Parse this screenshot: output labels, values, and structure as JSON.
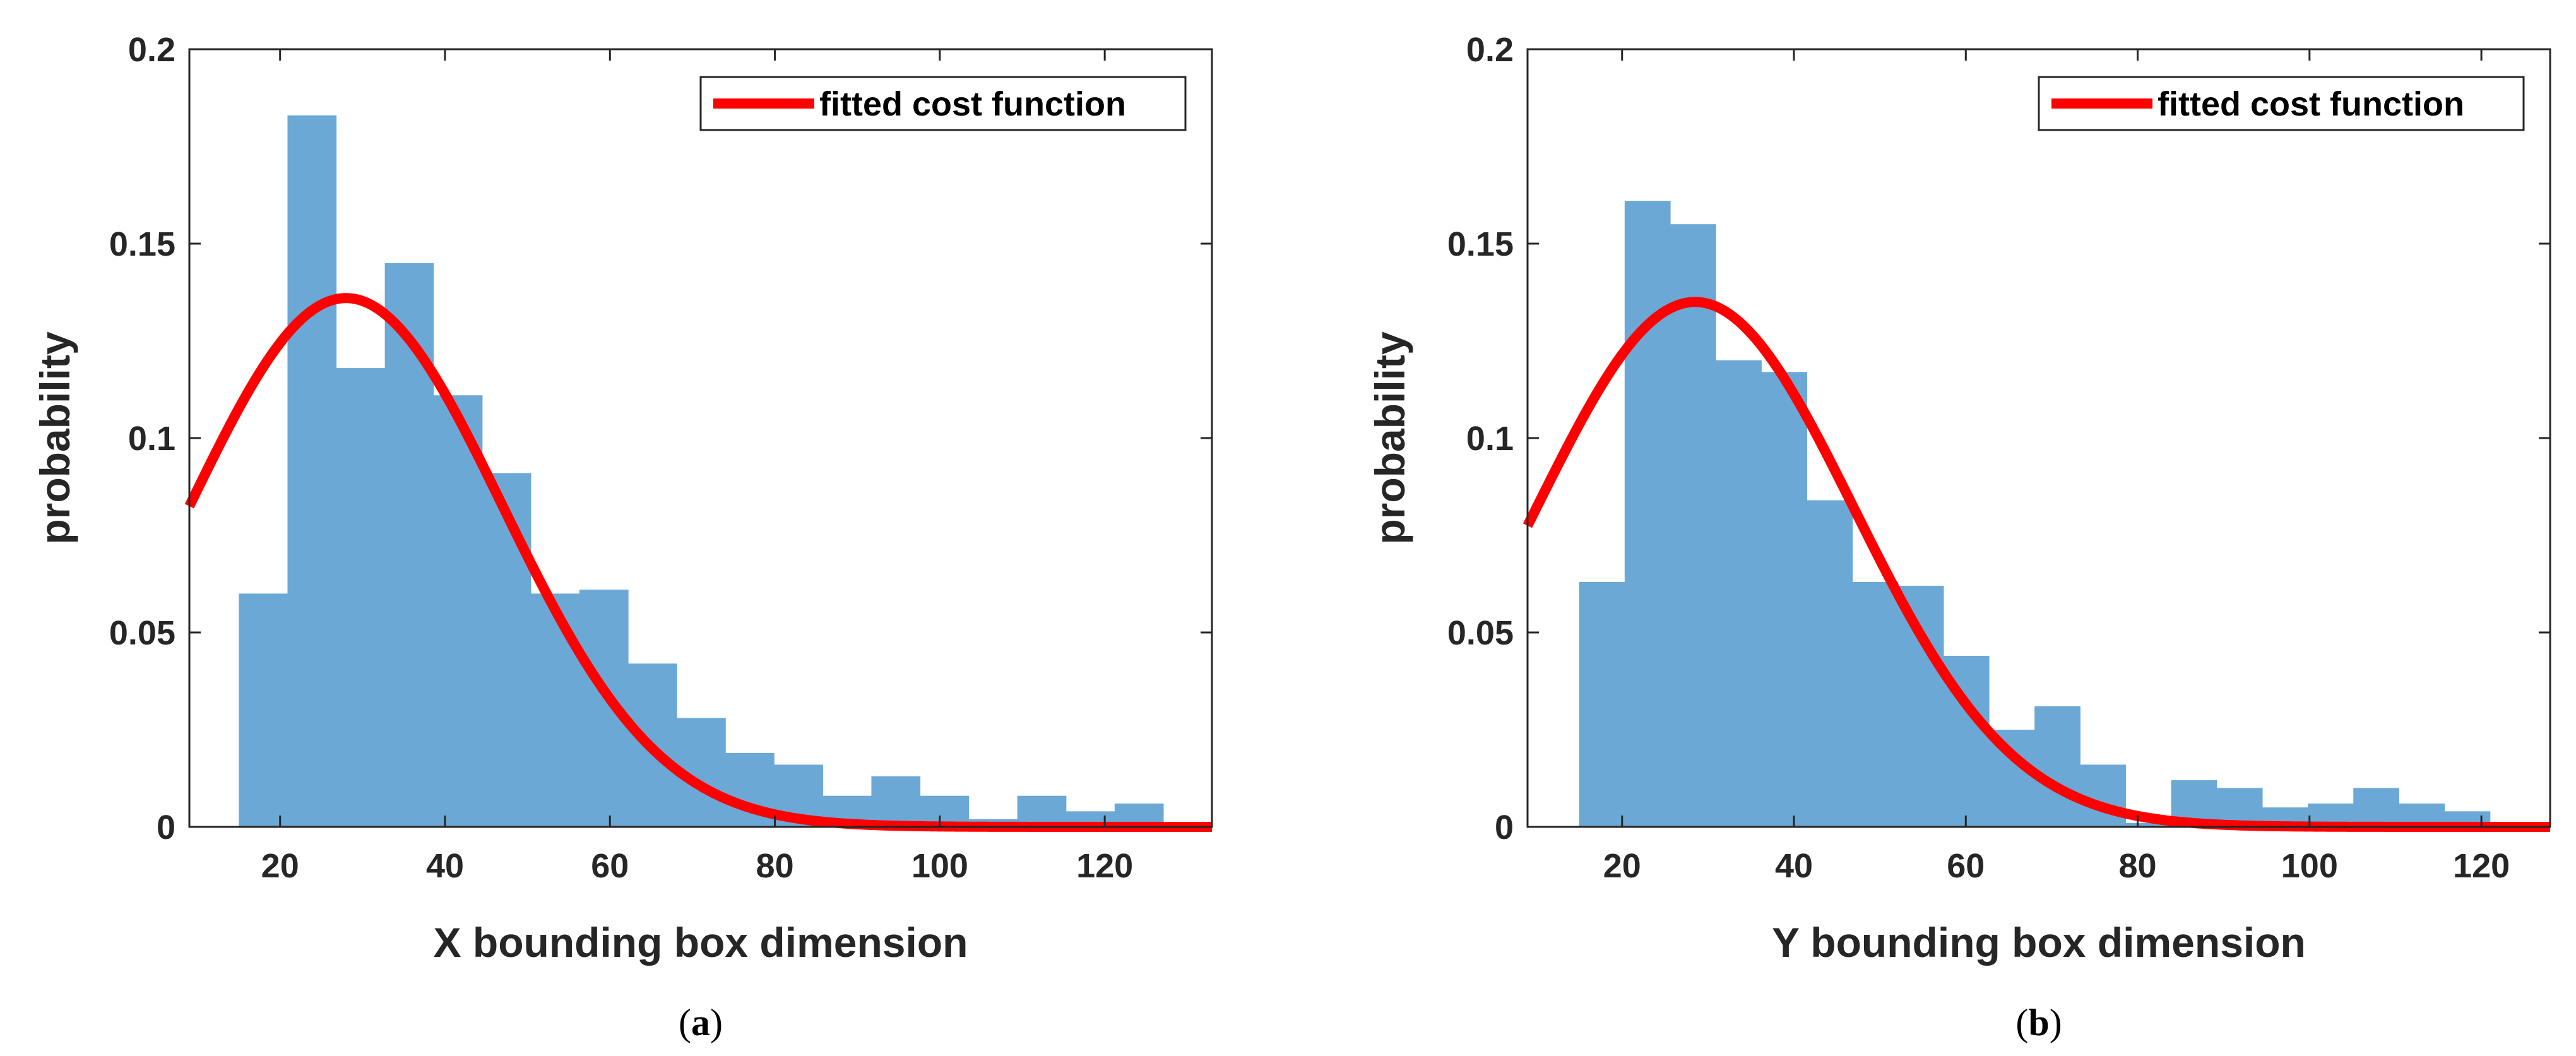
{
  "chart_data": [
    {
      "type": "bar",
      "panel_label": "a",
      "bin_width": 5.9,
      "bin_starts": [
        15,
        20.9,
        26.8,
        32.7,
        38.6,
        44.5,
        50.4,
        56.3,
        62.2,
        68.1,
        74.0,
        79.9,
        85.8,
        91.7,
        97.6,
        103.5,
        109.4,
        115.3,
        121.2
      ],
      "values": [
        0.06,
        0.183,
        0.118,
        0.145,
        0.111,
        0.091,
        0.06,
        0.061,
        0.042,
        0.028,
        0.019,
        0.016,
        0.008,
        0.013,
        0.008,
        0.002,
        0.008,
        0.004,
        0.006
      ],
      "curve": {
        "mu": 28,
        "sigma": 19,
        "peak": 0.136
      },
      "xlabel": "X bounding box dimension",
      "ylabel": "probability",
      "xlim": [
        9,
        133
      ],
      "ylim": [
        0,
        0.2
      ],
      "xticks": [
        20,
        40,
        60,
        80,
        100,
        120
      ],
      "yticks": [
        0,
        0.05,
        0.1,
        0.15,
        0.2
      ],
      "ytick_labels": [
        "0",
        "0.05",
        "0.1",
        "0.15",
        "0.2"
      ],
      "legend": "fitted cost function",
      "bar_color": "#6BA8D6",
      "curve_color": "#FF0000",
      "caption_open": "(",
      "caption_letter": "a",
      "caption_close": ")"
    },
    {
      "type": "bar",
      "panel_label": "b",
      "bin_width": 5.3,
      "bin_starts": [
        15,
        20.3,
        25.6,
        30.9,
        36.2,
        41.5,
        46.8,
        52.1,
        57.4,
        62.7,
        68.0,
        73.3,
        78.6,
        83.9,
        89.2,
        94.5,
        99.8,
        105.1,
        110.4,
        115.7
      ],
      "values": [
        0.063,
        0.161,
        0.155,
        0.12,
        0.117,
        0.084,
        0.063,
        0.062,
        0.044,
        0.025,
        0.031,
        0.016,
        0.001,
        0.012,
        0.01,
        0.005,
        0.006,
        0.01,
        0.006,
        0.004
      ],
      "curve": {
        "mu": 28.5,
        "sigma": 18.5,
        "peak": 0.135
      },
      "xlabel": "Y bounding box dimension",
      "ylabel": "probability",
      "xlim": [
        9,
        128
      ],
      "ylim": [
        0,
        0.2
      ],
      "xticks": [
        20,
        40,
        60,
        80,
        100,
        120
      ],
      "yticks": [
        0,
        0.05,
        0.1,
        0.15,
        0.2
      ],
      "ytick_labels": [
        "0",
        "0.05",
        "0.1",
        "0.15",
        "0.2"
      ],
      "legend": "fitted cost function",
      "bar_color": "#6BA8D6",
      "curve_color": "#FF0000",
      "caption_open": "(",
      "caption_letter": "b",
      "caption_close": ")"
    }
  ]
}
